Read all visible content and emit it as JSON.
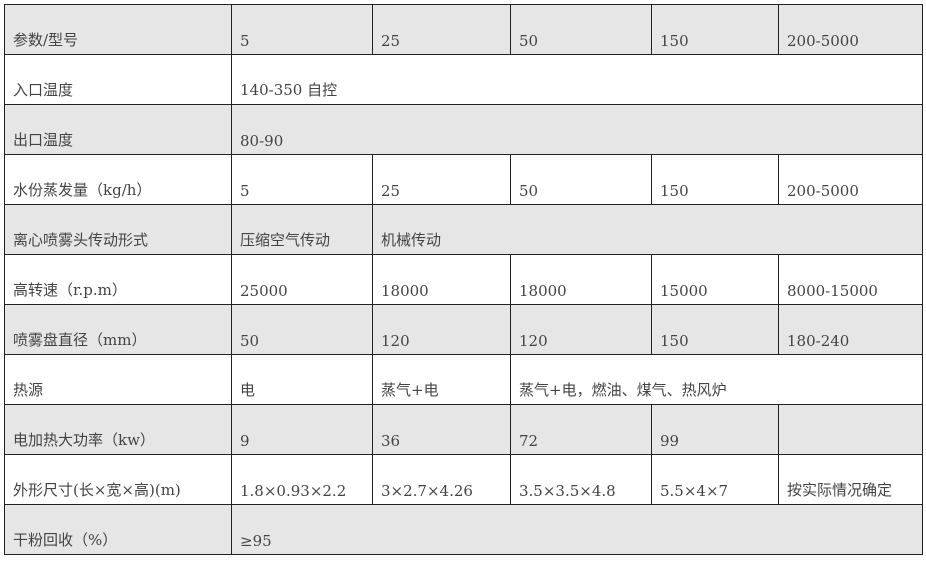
{
  "table": {
    "rows": [
      {
        "label": "参数/型号",
        "cells": [
          "5",
          "25",
          "50",
          "150",
          "200-5000"
        ]
      },
      {
        "label": "入口温度",
        "cells": [
          "140-350 自控"
        ]
      },
      {
        "label": "出口温度",
        "cells": [
          "80-90"
        ]
      },
      {
        "label": "水份蒸发量（kg/h）",
        "cells": [
          "5",
          "25",
          "50",
          "150",
          "200-5000"
        ]
      },
      {
        "label": "离心喷雾头传动形式",
        "cells": [
          "压缩空气传动",
          "机械传动"
        ]
      },
      {
        "label": "高转速（r.p.m）",
        "cells": [
          "25000",
          "18000",
          "18000",
          "15000",
          "8000-15000"
        ]
      },
      {
        "label": "喷雾盘直径（mm）",
        "cells": [
          "50",
          "120",
          "120",
          "150",
          "180-240"
        ]
      },
      {
        "label": "热源",
        "cells": [
          "电",
          "蒸气+电",
          "蒸气+电，燃油、煤气、热风炉"
        ]
      },
      {
        "label": "电加热大功率（kw）",
        "cells": [
          "9",
          "36",
          "72",
          "99",
          ""
        ]
      },
      {
        "label": "外形尺寸(长×宽×高)(m)",
        "cells": [
          "1.8×0.93×2.2",
          "3×2.7×4.26",
          "3.5×3.5×4.8",
          "5.5×4×7",
          "按实际情况确定"
        ]
      },
      {
        "label": "干粉回收（%）",
        "cells": [
          "≥95"
        ]
      }
    ]
  }
}
